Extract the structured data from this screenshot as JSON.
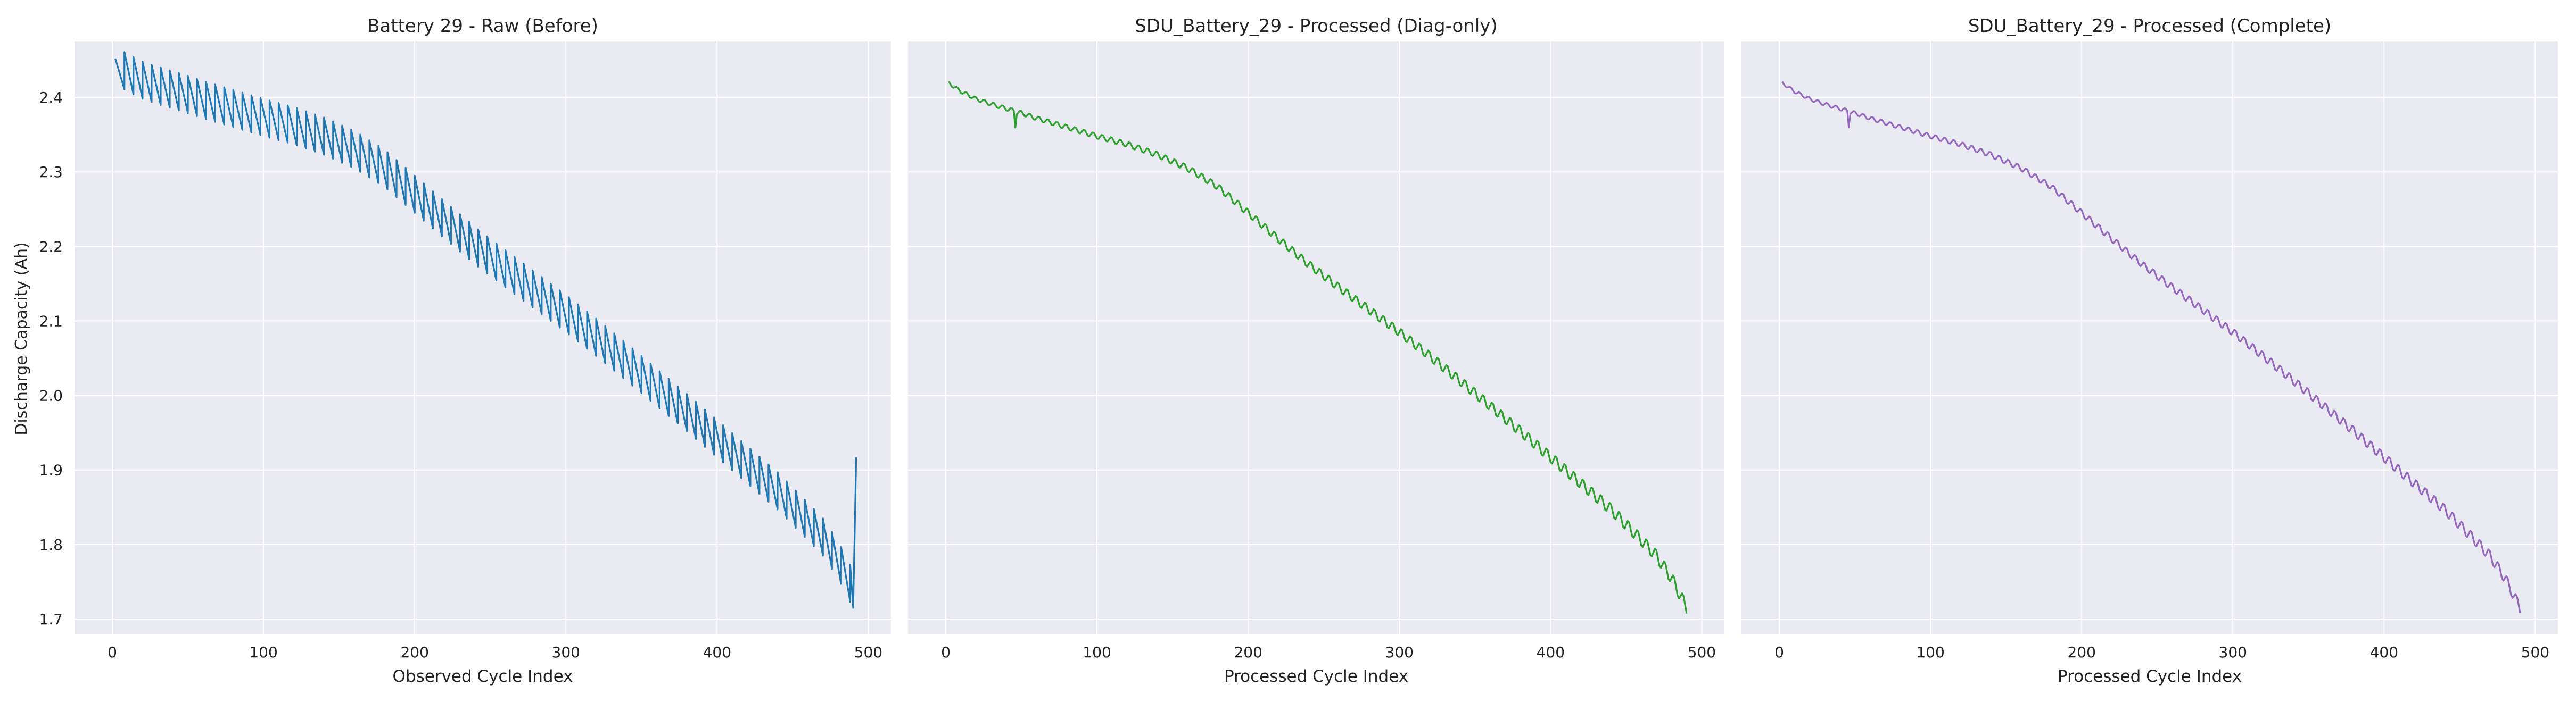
{
  "figure": {
    "ylabel": "Discharge Capacity (Ah)",
    "background_color": "#eaeaf2",
    "grid_color": "#ffffff"
  },
  "chart_data": [
    {
      "type": "line",
      "title": "Battery 29 - Raw (Before)",
      "xlabel": "Observed Cycle Index",
      "ylabel": "Discharge Capacity (Ah)",
      "xlim": [
        -25,
        515
      ],
      "ylim": [
        1.68,
        2.475
      ],
      "xticks": [
        0,
        100,
        200,
        300,
        400,
        500
      ],
      "yticks": [
        1.7,
        1.8,
        1.9,
        2.0,
        2.1,
        2.2,
        2.3,
        2.4
      ],
      "grid": true,
      "series": [
        {
          "color": "#1f77b4",
          "pattern": "sawtooth",
          "period": 6,
          "peak_offset": 0.05,
          "base_curve": {
            "x": [
              0,
              10,
              20,
              30,
              40,
              45,
              46,
              47,
              50,
              60,
              80,
              100,
              120,
              140,
              160,
              180,
              200,
              220,
              240,
              260,
              280,
              300,
              320,
              340,
              360,
              380,
              400,
              420,
              440,
              460,
              470,
              480,
              490
            ],
            "y": [
              2.422,
              2.408,
              2.398,
              2.391,
              2.385,
              2.382,
              2.372,
              2.38,
              2.379,
              2.372,
              2.36,
              2.348,
              2.337,
              2.323,
              2.305,
              2.28,
              2.245,
              2.21,
              2.176,
              2.145,
              2.115,
              2.085,
              2.053,
              2.02,
              1.986,
              1.952,
              1.917,
              1.882,
              1.847,
              1.806,
              1.785,
              1.755,
              1.715
            ]
          },
          "peaks": {
            "x": [
              2,
              492
            ],
            "y": [
              2.452,
              1.917
            ]
          }
        }
      ]
    },
    {
      "type": "line",
      "title": "SDU_Battery_29 - Processed (Diag-only)",
      "xlabel": "Processed Cycle Index",
      "xlim": [
        -25,
        515
      ],
      "ylim": [
        1.68,
        2.475
      ],
      "xticks": [
        0,
        100,
        200,
        300,
        400,
        500
      ],
      "grid": true,
      "series": [
        {
          "color": "#2ca02c",
          "pattern": "ripple",
          "ripple_amplitude": 0.004,
          "base_curve": {
            "x": [
              0,
              10,
              20,
              30,
              40,
              45,
              46,
              47,
              50,
              60,
              80,
              100,
              120,
              140,
              160,
              180,
              200,
              220,
              240,
              260,
              280,
              300,
              320,
              340,
              360,
              380,
              400,
              420,
              440,
              460,
              470,
              480,
              490
            ],
            "y": [
              2.422,
              2.408,
              2.398,
              2.391,
              2.385,
              2.382,
              2.362,
              2.38,
              2.379,
              2.372,
              2.36,
              2.348,
              2.337,
              2.323,
              2.305,
              2.28,
              2.245,
              2.21,
              2.176,
              2.145,
              2.115,
              2.085,
              2.053,
              2.02,
              1.986,
              1.952,
              1.917,
              1.882,
              1.847,
              1.806,
              1.785,
              1.755,
              1.715
            ]
          }
        }
      ]
    },
    {
      "type": "line",
      "title": "SDU_Battery_29 - Processed (Complete)",
      "xlabel": "Processed Cycle Index",
      "xlim": [
        -25,
        515
      ],
      "ylim": [
        1.68,
        2.475
      ],
      "xticks": [
        0,
        100,
        200,
        300,
        400,
        500
      ],
      "grid": true,
      "series": [
        {
          "color": "#9467bd",
          "pattern": "ripple",
          "ripple_amplitude": 0.0035,
          "base_curve": {
            "x": [
              0,
              10,
              20,
              30,
              40,
              45,
              46,
              47,
              50,
              60,
              80,
              100,
              120,
              140,
              160,
              180,
              200,
              220,
              240,
              260,
              280,
              300,
              320,
              340,
              360,
              380,
              400,
              420,
              440,
              460,
              470,
              480,
              490
            ],
            "y": [
              2.422,
              2.408,
              2.398,
              2.391,
              2.385,
              2.382,
              2.362,
              2.38,
              2.379,
              2.372,
              2.36,
              2.348,
              2.337,
              2.323,
              2.305,
              2.28,
              2.245,
              2.21,
              2.176,
              2.145,
              2.115,
              2.085,
              2.053,
              2.02,
              1.986,
              1.952,
              1.917,
              1.882,
              1.847,
              1.806,
              1.785,
              1.755,
              1.715
            ]
          }
        }
      ]
    }
  ]
}
